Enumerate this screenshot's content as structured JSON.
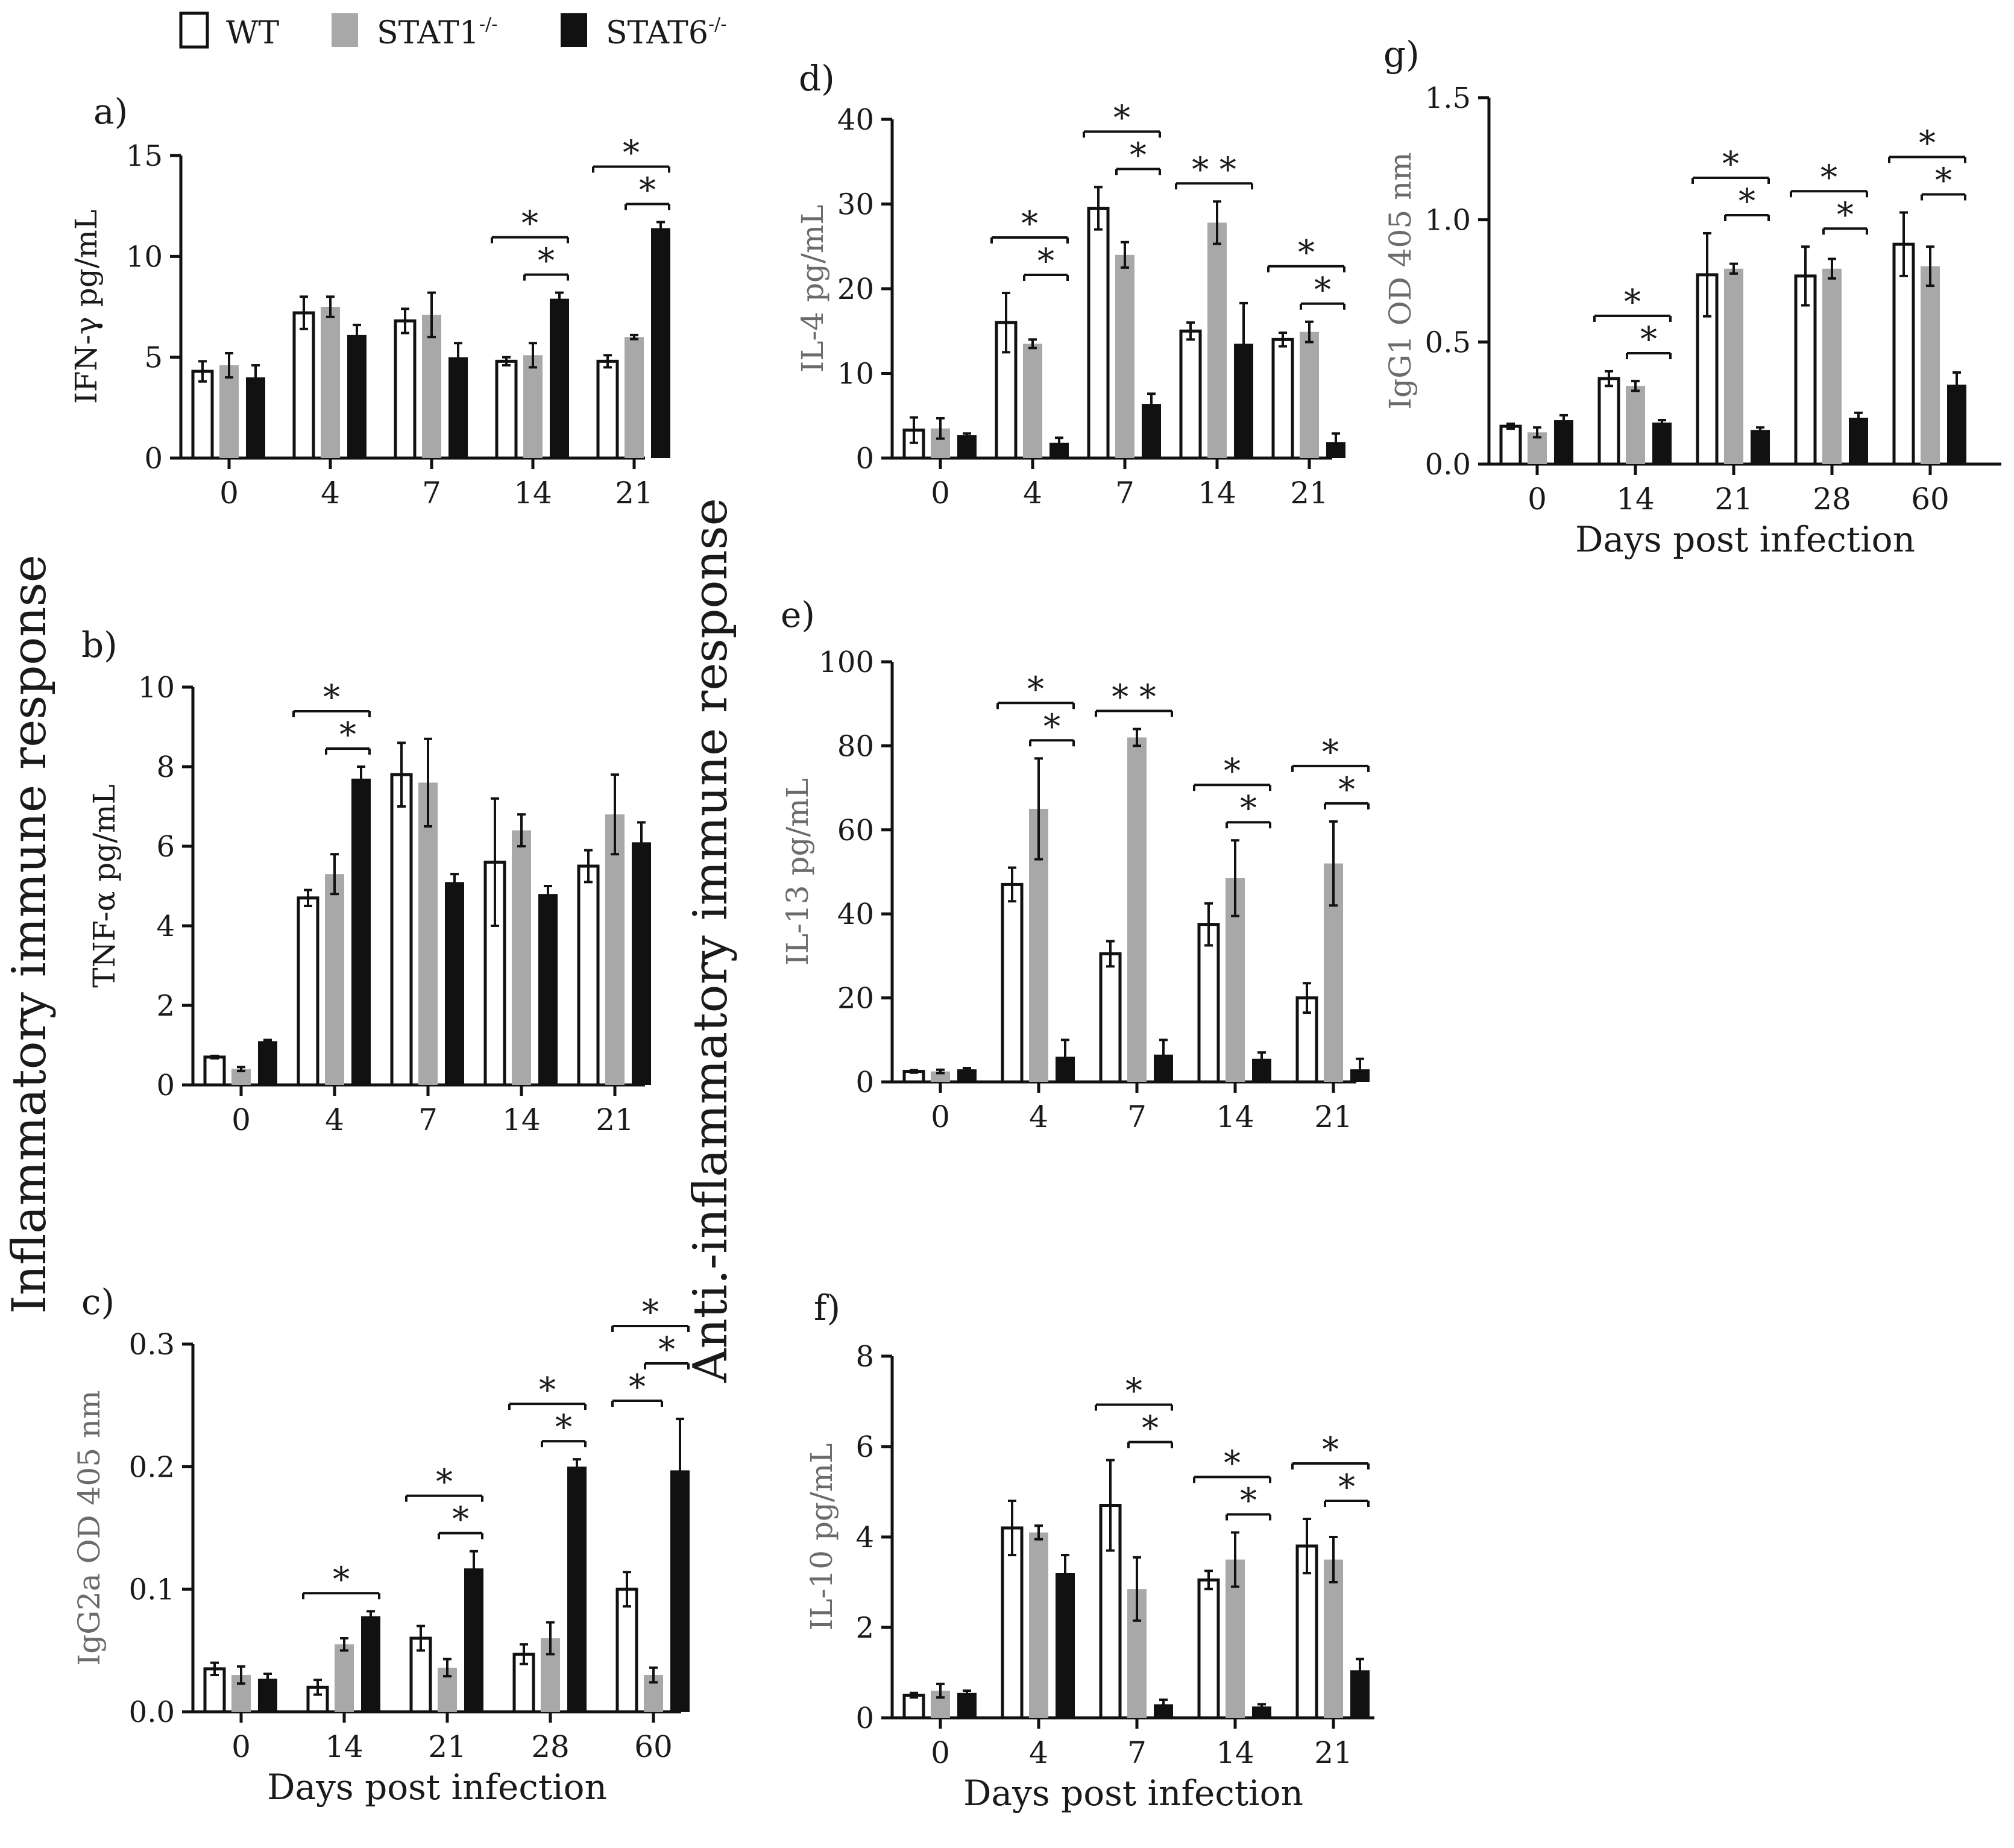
{
  "legend": {
    "items": [
      {
        "name": "WT",
        "label": "WT",
        "sup": "",
        "fill": "#ffffff"
      },
      {
        "name": "STAT1",
        "label": "STAT1",
        "sup": "-/-",
        "fill": "#a8a8a8"
      },
      {
        "name": "STAT6",
        "label": "STAT6",
        "sup": "-/-",
        "fill": "#111111"
      }
    ]
  },
  "side_labels": {
    "left": "Inflammatory immune response",
    "middle": "Anti.-inflammatory immune response"
  },
  "colors": {
    "wt": "#ffffff",
    "stat1": "#a8a8a8",
    "stat6": "#111111",
    "axis": "#111111"
  },
  "chart_data": [
    {
      "id": "a",
      "panel_label": "a)",
      "type": "bar",
      "ylabel": "IFN-γ pg/mL",
      "ylabel_gray": false,
      "xlabel": "",
      "categories": [
        "0",
        "4",
        "7",
        "14",
        "21"
      ],
      "ylim": [
        0,
        15
      ],
      "yticks": [
        "0",
        "5",
        "10",
        "15"
      ],
      "ytick_values": [
        0,
        5,
        10,
        15
      ],
      "series": [
        {
          "name": "WT",
          "values": [
            4.3,
            7.2,
            6.8,
            4.8,
            4.8
          ],
          "errors": [
            0.5,
            0.8,
            0.6,
            0.2,
            0.3
          ]
        },
        {
          "name": "STAT1-/-",
          "values": [
            4.6,
            7.5,
            7.1,
            5.1,
            6.0
          ],
          "errors": [
            0.6,
            0.5,
            1.1,
            0.6,
            0.1
          ]
        },
        {
          "name": "STAT6-/-",
          "values": [
            4.0,
            6.1,
            5.0,
            7.9,
            11.4
          ],
          "errors": [
            0.6,
            0.5,
            0.7,
            0.3,
            0.3
          ]
        }
      ],
      "significance": [
        {
          "cat": 3,
          "from": 0,
          "to": 2,
          "level": 2,
          "mark": "*"
        },
        {
          "cat": 3,
          "from": 1,
          "to": 2,
          "level": 1,
          "mark": "*"
        },
        {
          "cat": 4,
          "from": 0,
          "to": 2,
          "level": 2,
          "mark": "*"
        },
        {
          "cat": 4,
          "from": 1,
          "to": 2,
          "level": 1,
          "mark": "*"
        }
      ]
    },
    {
      "id": "b",
      "panel_label": "b)",
      "type": "bar",
      "ylabel": "TNF-α pg/mL",
      "ylabel_gray": false,
      "xlabel": "",
      "categories": [
        "0",
        "4",
        "7",
        "14",
        "21"
      ],
      "ylim": [
        0,
        10
      ],
      "yticks": [
        "0",
        "2",
        "4",
        "6",
        "8",
        "10"
      ],
      "ytick_values": [
        0,
        2,
        4,
        6,
        8,
        10
      ],
      "series": [
        {
          "name": "WT",
          "values": [
            0.7,
            4.7,
            7.8,
            5.6,
            5.5
          ],
          "errors": [
            0.03,
            0.2,
            0.8,
            1.6,
            0.4
          ]
        },
        {
          "name": "STAT1-/-",
          "values": [
            0.4,
            5.3,
            7.6,
            6.4,
            6.8
          ],
          "errors": [
            0.05,
            0.5,
            1.1,
            0.4,
            1.0
          ]
        },
        {
          "name": "STAT6-/-",
          "values": [
            1.1,
            7.7,
            5.1,
            4.8,
            6.1
          ],
          "errors": [
            0.03,
            0.3,
            0.2,
            0.2,
            0.5
          ]
        }
      ],
      "significance": [
        {
          "cat": 1,
          "from": 0,
          "to": 2,
          "level": 2,
          "mark": "*"
        },
        {
          "cat": 1,
          "from": 1,
          "to": 2,
          "level": 1,
          "mark": "*"
        }
      ]
    },
    {
      "id": "c",
      "panel_label": "c)",
      "type": "bar",
      "ylabel": "IgG2a OD 405 nm",
      "ylabel_gray": true,
      "xlabel": "Days post  infection",
      "categories": [
        "0",
        "14",
        "21",
        "28",
        "60"
      ],
      "ylim": [
        0,
        0.3
      ],
      "yticks": [
        "0.0",
        "0.1",
        "0.2",
        "0.3"
      ],
      "ytick_values": [
        0,
        0.1,
        0.2,
        0.3
      ],
      "series": [
        {
          "name": "WT",
          "values": [
            0.035,
            0.02,
            0.06,
            0.047,
            0.1
          ],
          "errors": [
            0.005,
            0.006,
            0.01,
            0.008,
            0.014
          ]
        },
        {
          "name": "STAT1-/-",
          "values": [
            0.03,
            0.055,
            0.036,
            0.06,
            0.03
          ],
          "errors": [
            0.007,
            0.005,
            0.007,
            0.013,
            0.006
          ]
        },
        {
          "name": "STAT6-/-",
          "values": [
            0.027,
            0.078,
            0.117,
            0.2,
            0.197
          ],
          "errors": [
            0.004,
            0.004,
            0.014,
            0.006,
            0.042
          ]
        }
      ],
      "significance": [
        {
          "cat": 1,
          "from": 0,
          "to": 2,
          "level": 1,
          "mark": "*"
        },
        {
          "cat": 2,
          "from": 0,
          "to": 2,
          "level": 2,
          "mark": "*"
        },
        {
          "cat": 2,
          "from": 1,
          "to": 2,
          "level": 1,
          "mark": "*"
        },
        {
          "cat": 3,
          "from": 0,
          "to": 2,
          "level": 2,
          "mark": "*"
        },
        {
          "cat": 3,
          "from": 1,
          "to": 2,
          "level": 1,
          "mark": "*"
        },
        {
          "cat": 4,
          "from": 0,
          "to": 1,
          "level": 1,
          "mark": "*"
        },
        {
          "cat": 4,
          "from": 0,
          "to": 2,
          "level": 3,
          "mark": "*"
        },
        {
          "cat": 4,
          "from": 1,
          "to": 2,
          "level": 2,
          "mark": "*"
        }
      ]
    },
    {
      "id": "d",
      "panel_label": "d)",
      "type": "bar",
      "ylabel": "IL-4 pg/mL",
      "ylabel_gray": true,
      "xlabel": "",
      "categories": [
        "0",
        "4",
        "7",
        "14",
        "21"
      ],
      "ylim": [
        0,
        40
      ],
      "yticks": [
        "0",
        "10",
        "20",
        "30",
        "40"
      ],
      "ytick_values": [
        0,
        10,
        20,
        30,
        40
      ],
      "series": [
        {
          "name": "WT",
          "values": [
            3.3,
            16.0,
            29.5,
            15.0,
            14.0
          ],
          "errors": [
            1.5,
            3.5,
            2.5,
            1.0,
            0.8
          ]
        },
        {
          "name": "STAT1-/-",
          "values": [
            3.5,
            13.5,
            24.0,
            27.8,
            14.9
          ],
          "errors": [
            1.2,
            0.5,
            1.5,
            2.5,
            1.2
          ]
        },
        {
          "name": "STAT6-/-",
          "values": [
            2.7,
            1.8,
            6.4,
            13.5,
            1.9
          ],
          "errors": [
            0.2,
            0.6,
            1.2,
            4.8,
            1.0
          ]
        }
      ],
      "significance": [
        {
          "cat": 1,
          "from": 0,
          "to": 2,
          "level": 2,
          "mark": "*"
        },
        {
          "cat": 1,
          "from": 1,
          "to": 2,
          "level": 1,
          "mark": "*"
        },
        {
          "cat": 2,
          "from": 0,
          "to": 2,
          "level": 2,
          "mark": "*"
        },
        {
          "cat": 2,
          "from": 1,
          "to": 2,
          "level": 1,
          "mark": "*"
        },
        {
          "cat": 3,
          "from": 0,
          "to": 2,
          "level": 1,
          "mark": "* *"
        },
        {
          "cat": 4,
          "from": 0,
          "to": 2,
          "level": 2,
          "mark": "*"
        },
        {
          "cat": 4,
          "from": 1,
          "to": 2,
          "level": 1,
          "mark": "*"
        }
      ]
    },
    {
      "id": "e",
      "panel_label": "e)",
      "type": "bar",
      "ylabel": "IL-13 pg/mL",
      "ylabel_gray": true,
      "xlabel": "",
      "categories": [
        "0",
        "4",
        "7",
        "14",
        "21"
      ],
      "ylim": [
        0,
        100
      ],
      "yticks": [
        "0",
        "20",
        "40",
        "60",
        "80",
        "100"
      ],
      "ytick_values": [
        0,
        20,
        40,
        60,
        80,
        100
      ],
      "series": [
        {
          "name": "WT",
          "values": [
            2.5,
            47.0,
            30.5,
            37.5,
            20.0
          ],
          "errors": [
            0.3,
            4.0,
            3.0,
            5.0,
            3.5
          ]
        },
        {
          "name": "STAT1-/-",
          "values": [
            2.5,
            65.0,
            82.0,
            48.5,
            52.0
          ],
          "errors": [
            0.4,
            12.0,
            2.0,
            9.0,
            10.0
          ]
        },
        {
          "name": "STAT6-/-",
          "values": [
            3.0,
            6.0,
            6.5,
            5.5,
            3.0
          ],
          "errors": [
            0.3,
            4.0,
            3.5,
            1.5,
            2.5
          ]
        }
      ],
      "significance": [
        {
          "cat": 1,
          "from": 0,
          "to": 2,
          "level": 2,
          "mark": "*"
        },
        {
          "cat": 1,
          "from": 1,
          "to": 2,
          "level": 1,
          "mark": "*"
        },
        {
          "cat": 2,
          "from": 0,
          "to": 2,
          "level": 1,
          "mark": "* *"
        },
        {
          "cat": 3,
          "from": 0,
          "to": 2,
          "level": 2,
          "mark": "*"
        },
        {
          "cat": 3,
          "from": 1,
          "to": 2,
          "level": 1,
          "mark": "*"
        },
        {
          "cat": 4,
          "from": 0,
          "to": 2,
          "level": 2,
          "mark": "*"
        },
        {
          "cat": 4,
          "from": 1,
          "to": 2,
          "level": 1,
          "mark": "*"
        }
      ]
    },
    {
      "id": "f",
      "panel_label": "f)",
      "type": "bar",
      "ylabel": "IL-10 pg/mL",
      "ylabel_gray": true,
      "xlabel": "Days post  infection",
      "categories": [
        "0",
        "4",
        "7",
        "14",
        "21"
      ],
      "ylim": [
        0,
        8
      ],
      "yticks": [
        "0",
        "2",
        "4",
        "6",
        "8"
      ],
      "ytick_values": [
        0,
        2,
        4,
        6,
        8
      ],
      "series": [
        {
          "name": "WT",
          "values": [
            0.5,
            4.2,
            4.7,
            3.05,
            3.8
          ],
          "errors": [
            0.05,
            0.6,
            1.0,
            0.2,
            0.6
          ]
        },
        {
          "name": "STAT1-/-",
          "values": [
            0.6,
            4.1,
            2.85,
            3.5,
            3.5
          ],
          "errors": [
            0.15,
            0.15,
            0.7,
            0.6,
            0.5
          ]
        },
        {
          "name": "STAT6-/-",
          "values": [
            0.55,
            3.2,
            0.3,
            0.25,
            1.05
          ],
          "errors": [
            0.05,
            0.4,
            0.1,
            0.05,
            0.25
          ]
        }
      ],
      "significance": [
        {
          "cat": 2,
          "from": 0,
          "to": 2,
          "level": 2,
          "mark": "*"
        },
        {
          "cat": 2,
          "from": 1,
          "to": 2,
          "level": 1,
          "mark": "*"
        },
        {
          "cat": 3,
          "from": 0,
          "to": 2,
          "level": 2,
          "mark": "*"
        },
        {
          "cat": 3,
          "from": 1,
          "to": 2,
          "level": 1,
          "mark": "*"
        },
        {
          "cat": 4,
          "from": 0,
          "to": 2,
          "level": 2,
          "mark": "*"
        },
        {
          "cat": 4,
          "from": 1,
          "to": 2,
          "level": 1,
          "mark": "*"
        }
      ]
    },
    {
      "id": "g",
      "panel_label": "g)",
      "type": "bar",
      "ylabel": "IgG1 OD 405 nm",
      "ylabel_gray": true,
      "xlabel": "Days post  infection",
      "categories": [
        "0",
        "14",
        "21",
        "28",
        "60"
      ],
      "ylim": [
        0,
        1.5
      ],
      "yticks": [
        "0.0",
        "0.5",
        "1.0",
        "1.5"
      ],
      "ytick_values": [
        0,
        0.5,
        1.0,
        1.5
      ],
      "series": [
        {
          "name": "WT",
          "values": [
            0.155,
            0.35,
            0.775,
            0.77,
            0.9
          ],
          "errors": [
            0.01,
            0.03,
            0.17,
            0.12,
            0.13
          ]
        },
        {
          "name": "STAT1-/-",
          "values": [
            0.13,
            0.32,
            0.8,
            0.8,
            0.81
          ],
          "errors": [
            0.02,
            0.02,
            0.02,
            0.04,
            0.08
          ]
        },
        {
          "name": "STAT6-/-",
          "values": [
            0.18,
            0.17,
            0.14,
            0.19,
            0.325
          ],
          "errors": [
            0.02,
            0.01,
            0.01,
            0.02,
            0.05
          ]
        }
      ],
      "significance": [
        {
          "cat": 1,
          "from": 0,
          "to": 2,
          "level": 2,
          "mark": "*"
        },
        {
          "cat": 1,
          "from": 1,
          "to": 2,
          "level": 1,
          "mark": "*"
        },
        {
          "cat": 2,
          "from": 0,
          "to": 2,
          "level": 2,
          "mark": "*"
        },
        {
          "cat": 2,
          "from": 1,
          "to": 2,
          "level": 1,
          "mark": "*"
        },
        {
          "cat": 3,
          "from": 0,
          "to": 2,
          "level": 2,
          "mark": "*"
        },
        {
          "cat": 3,
          "from": 1,
          "to": 2,
          "level": 1,
          "mark": "*"
        },
        {
          "cat": 4,
          "from": 0,
          "to": 2,
          "level": 2,
          "mark": "*"
        },
        {
          "cat": 4,
          "from": 1,
          "to": 2,
          "level": 1,
          "mark": "*"
        }
      ]
    }
  ]
}
